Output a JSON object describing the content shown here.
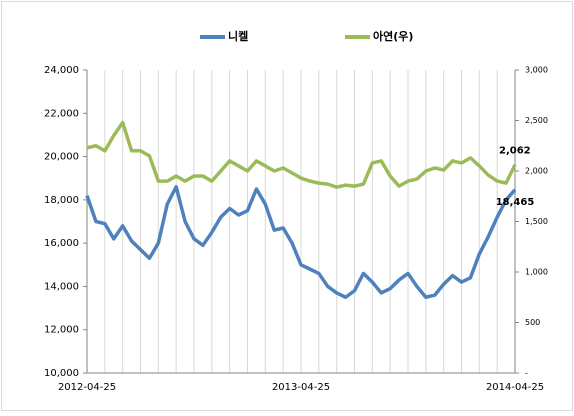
{
  "chart_data": {
    "type": "line",
    "categories": [
      "2012-04-25",
      null,
      null,
      null,
      null,
      null,
      null,
      null,
      null,
      null,
      null,
      null,
      null,
      null,
      null,
      null,
      null,
      null,
      null,
      null,
      null,
      null,
      null,
      null,
      "2013-04-25",
      null,
      null,
      null,
      null,
      null,
      null,
      null,
      null,
      null,
      null,
      null,
      null,
      null,
      null,
      null,
      null,
      null,
      null,
      null,
      null,
      null,
      null,
      null,
      "2014-04-25"
    ],
    "series": [
      {
        "name": "니켈",
        "color": "#4f81bd",
        "axis": "y",
        "values": [
          18200,
          17000,
          16900,
          16200,
          16800,
          16100,
          15700,
          15300,
          16000,
          17800,
          18600,
          17000,
          16200,
          15900,
          16500,
          17200,
          17600,
          17300,
          17500,
          18500,
          17800,
          16600,
          16700,
          16000,
          15000,
          14800,
          14600,
          14000,
          13700,
          13500,
          13800,
          14600,
          14200,
          13700,
          13900,
          14300,
          14600,
          14000,
          13500,
          13600,
          14100,
          14500,
          14200,
          14400,
          15500,
          16300,
          17200,
          18000,
          18465
        ],
        "value_labels": [
          null,
          null,
          null,
          null,
          null,
          null,
          null,
          null,
          null,
          null,
          null,
          null,
          null,
          null,
          null,
          null,
          null,
          null,
          null,
          null,
          null,
          null,
          null,
          null,
          null,
          null,
          null,
          null,
          null,
          null,
          null,
          null,
          null,
          null,
          null,
          null,
          null,
          null,
          null,
          null,
          null,
          null,
          null,
          null,
          null,
          null,
          null,
          null,
          "18,465"
        ]
      },
      {
        "name": "아연(우)",
        "color": "#9bbb59",
        "axis": "y2",
        "values": [
          2230,
          2250,
          2200,
          2350,
          2480,
          2200,
          2200,
          2150,
          1900,
          1900,
          1950,
          1900,
          1950,
          1950,
          1900,
          2000,
          2100,
          2050,
          2000,
          2100,
          2050,
          2000,
          2030,
          1980,
          1930,
          1900,
          1880,
          1870,
          1840,
          1860,
          1850,
          1870,
          2080,
          2100,
          1950,
          1850,
          1900,
          1920,
          2000,
          2030,
          2010,
          2100,
          2080,
          2130,
          2050,
          1960,
          1900,
          1880,
          2062
        ],
        "value_labels": [
          null,
          null,
          null,
          null,
          null,
          null,
          null,
          null,
          null,
          null,
          null,
          null,
          null,
          null,
          null,
          null,
          null,
          null,
          null,
          null,
          null,
          null,
          null,
          null,
          null,
          null,
          null,
          null,
          null,
          null,
          null,
          null,
          null,
          null,
          null,
          null,
          null,
          null,
          null,
          null,
          null,
          null,
          null,
          null,
          null,
          null,
          null,
          null,
          "2,062"
        ]
      }
    ],
    "ylim": [
      10000,
      24000
    ],
    "yticks": [
      {
        "value": 10000,
        "label": "10,000"
      },
      {
        "value": 12000,
        "label": "12,000"
      },
      {
        "value": 14000,
        "label": "14,000"
      },
      {
        "value": 16000,
        "label": "16,000"
      },
      {
        "value": 18000,
        "label": "18,000"
      },
      {
        "value": 20000,
        "label": "20,000"
      },
      {
        "value": 22000,
        "label": "22,000"
      },
      {
        "value": 24000,
        "label": "24,000"
      }
    ],
    "y2lim": [
      0,
      3000
    ],
    "y2ticks": [
      {
        "value": 0,
        "label": "-"
      },
      500,
      {
        "value": 1000,
        "label": "1,000"
      },
      {
        "value": 1500,
        "label": "1,500"
      },
      {
        "value": 2000,
        "label": "2,000"
      },
      {
        "value": 2500,
        "label": "2,500"
      },
      {
        "value": 3000,
        "label": "3,000"
      }
    ],
    "grid": true,
    "legend": "top"
  }
}
